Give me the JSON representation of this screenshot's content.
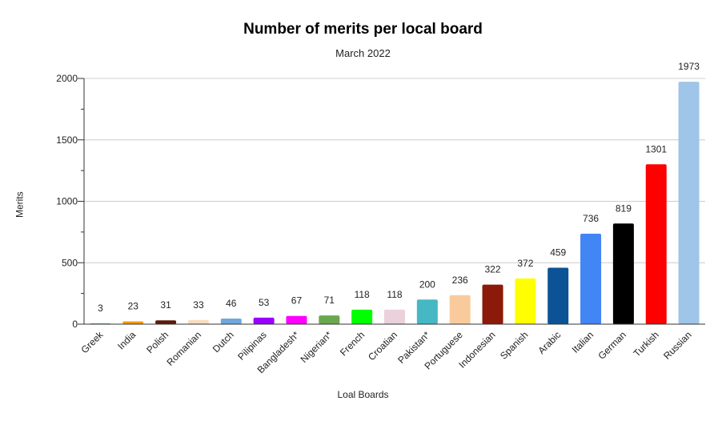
{
  "chart_data": {
    "type": "bar",
    "title": "Number of merits per local board",
    "subtitle": "March 2022",
    "xlabel": "Loal Boards",
    "ylabel": "Merits",
    "ylim": [
      0,
      2000
    ],
    "yticks": [
      0,
      500,
      1000,
      1500,
      2000
    ],
    "grid": true,
    "legend": "none",
    "categories": [
      "Greek",
      "India",
      "Polish",
      "Romanian",
      "Dutch",
      "Pilipinas",
      "Bangladesh*",
      "Nigerian*",
      "French",
      "Croatian",
      "Pakistan*",
      "Portuguese",
      "Indonesian",
      "Spanish",
      "Arabic",
      "Italian",
      "German",
      "Turkish",
      "Russian"
    ],
    "values": [
      3,
      23,
      31,
      33,
      46,
      53,
      67,
      71,
      118,
      118,
      200,
      236,
      322,
      372,
      459,
      736,
      819,
      1301,
      1973
    ],
    "colors": [
      "#5fb7c9",
      "#ff9900",
      "#5b1a0a",
      "#f7dcc0",
      "#6fa8dc",
      "#9900ff",
      "#ff00ff",
      "#6aa84f",
      "#00ff00",
      "#ead1dc",
      "#45b8c4",
      "#f9cb9c",
      "#8b1a0a",
      "#ffff00",
      "#0b5394",
      "#4285f4",
      "#000000",
      "#ff0000",
      "#9fc5e8"
    ]
  }
}
